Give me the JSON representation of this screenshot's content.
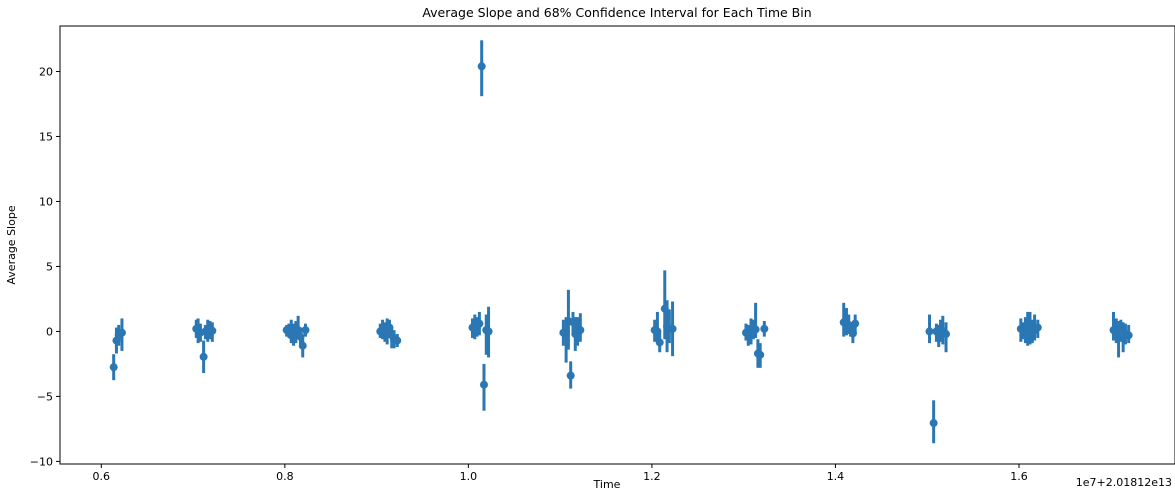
{
  "chart_data": {
    "type": "scatter",
    "title": "Average Slope and 68% Confidence Interval for Each Time Bin",
    "xlabel": "Time",
    "ylabel": "Average Slope",
    "offset_label": "1e7+2.01812e13",
    "xlim": [
      0.555,
      1.77
    ],
    "ylim": [
      -10.2,
      23.5
    ],
    "xticks": [
      0.6,
      0.8,
      1.0,
      1.2,
      1.4,
      1.6
    ],
    "xtick_labels": [
      "0.6",
      "0.8",
      "1.0",
      "1.2",
      "1.4",
      "1.6"
    ],
    "yticks": [
      -10,
      -5,
      0,
      5,
      10,
      15,
      20
    ],
    "ytick_labels": [
      "−10",
      "−5",
      "0",
      "5",
      "10",
      "15",
      "20"
    ],
    "grid": false,
    "color": "#2a77b4",
    "points": [
      {
        "x": 0.6135,
        "y": -2.75,
        "lo": -3.75,
        "hi": -1.75
      },
      {
        "x": 0.6165,
        "y": -0.7,
        "lo": -1.7,
        "hi": 0.3
      },
      {
        "x": 0.619,
        "y": -0.3,
        "lo": -1.1,
        "hi": 0.5
      },
      {
        "x": 0.6225,
        "y": -0.1,
        "lo": -1.5,
        "hi": 1.0
      },
      {
        "x": 0.7035,
        "y": 0.2,
        "lo": -0.5,
        "hi": 0.9
      },
      {
        "x": 0.7055,
        "y": 0.1,
        "lo": -0.9,
        "hi": 1.0
      },
      {
        "x": 0.708,
        "y": -0.1,
        "lo": -0.8,
        "hi": 0.6
      },
      {
        "x": 0.7115,
        "y": -1.95,
        "lo": -3.2,
        "hi": -0.7
      },
      {
        "x": 0.7135,
        "y": 0.0,
        "lo": -0.6,
        "hi": 0.5
      },
      {
        "x": 0.716,
        "y": -0.2,
        "lo": -0.8,
        "hi": 0.9
      },
      {
        "x": 0.7185,
        "y": 0.1,
        "lo": -0.6,
        "hi": 0.8
      },
      {
        "x": 0.721,
        "y": 0.05,
        "lo": -0.8,
        "hi": 0.7
      },
      {
        "x": 0.802,
        "y": 0.1,
        "lo": -0.4,
        "hi": 0.5
      },
      {
        "x": 0.8045,
        "y": 0.05,
        "lo": -0.5,
        "hi": 0.6
      },
      {
        "x": 0.807,
        "y": -0.3,
        "lo": -0.9,
        "hi": 0.9
      },
      {
        "x": 0.8095,
        "y": -0.2,
        "lo": -1.1,
        "hi": 0.6
      },
      {
        "x": 0.812,
        "y": 0.0,
        "lo": -0.9,
        "hi": 0.8
      },
      {
        "x": 0.8145,
        "y": 0.1,
        "lo": -0.6,
        "hi": 1.2
      },
      {
        "x": 0.817,
        "y": -0.4,
        "lo": -1.0,
        "hi": 0.3
      },
      {
        "x": 0.8195,
        "y": -1.1,
        "lo": -2.0,
        "hi": -0.4
      },
      {
        "x": 0.8225,
        "y": 0.1,
        "lo": -0.4,
        "hi": 0.6
      },
      {
        "x": 0.904,
        "y": 0.0,
        "lo": -0.5,
        "hi": 0.6
      },
      {
        "x": 0.9065,
        "y": 0.2,
        "lo": -0.6,
        "hi": 0.9
      },
      {
        "x": 0.909,
        "y": 0.1,
        "lo": -0.8,
        "hi": 0.7
      },
      {
        "x": 0.9115,
        "y": -0.1,
        "lo": -1.0,
        "hi": 1.0
      },
      {
        "x": 0.914,
        "y": 0.3,
        "lo": -0.5,
        "hi": 0.9
      },
      {
        "x": 0.9165,
        "y": -0.3,
        "lo": -1.3,
        "hi": 0.3
      },
      {
        "x": 0.919,
        "y": -0.6,
        "lo": -1.3,
        "hi": 0.1
      },
      {
        "x": 0.9225,
        "y": -0.7,
        "lo": -1.2,
        "hi": -0.2
      },
      {
        "x": 1.0045,
        "y": 0.3,
        "lo": -0.5,
        "hi": 1.0
      },
      {
        "x": 1.007,
        "y": 0.25,
        "lo": -0.6,
        "hi": 1.3
      },
      {
        "x": 1.0095,
        "y": 0.4,
        "lo": -0.4,
        "hi": 1.1
      },
      {
        "x": 1.012,
        "y": 0.6,
        "lo": -0.3,
        "hi": 1.5
      },
      {
        "x": 1.0145,
        "y": 20.4,
        "lo": 18.1,
        "hi": 22.4
      },
      {
        "x": 1.017,
        "y": -4.1,
        "lo": -6.1,
        "hi": -2.5
      },
      {
        "x": 1.0195,
        "y": 0.1,
        "lo": -1.8,
        "hi": 1.3
      },
      {
        "x": 1.022,
        "y": 0.0,
        "lo": -2.0,
        "hi": 1.9
      },
      {
        "x": 1.1035,
        "y": -0.1,
        "lo": -1.1,
        "hi": 0.9
      },
      {
        "x": 1.1065,
        "y": 0.0,
        "lo": -2.4,
        "hi": 1.1
      },
      {
        "x": 1.109,
        "y": 0.8,
        "lo": -1.4,
        "hi": 3.2
      },
      {
        "x": 1.1115,
        "y": -3.4,
        "lo": -4.4,
        "hi": -2.3
      },
      {
        "x": 1.114,
        "y": 0.7,
        "lo": -0.3,
        "hi": 1.5
      },
      {
        "x": 1.1165,
        "y": -0.2,
        "lo": -1.5,
        "hi": 1.1
      },
      {
        "x": 1.119,
        "y": 0.1,
        "lo": -1.1,
        "hi": 1.1
      },
      {
        "x": 1.122,
        "y": 0.1,
        "lo": -0.8,
        "hi": 1.4
      },
      {
        "x": 1.203,
        "y": 0.1,
        "lo": -0.8,
        "hi": 0.9
      },
      {
        "x": 1.206,
        "y": 0.0,
        "lo": -0.9,
        "hi": 1.5
      },
      {
        "x": 1.2085,
        "y": -0.85,
        "lo": -1.6,
        "hi": -0.1
      },
      {
        "x": 1.214,
        "y": 1.75,
        "lo": -0.6,
        "hi": 4.7
      },
      {
        "x": 1.2165,
        "y": 0.4,
        "lo": -1.6,
        "hi": 2.4
      },
      {
        "x": 1.219,
        "y": 0.2,
        "lo": -0.9,
        "hi": 1.7
      },
      {
        "x": 1.2225,
        "y": 0.2,
        "lo": -1.9,
        "hi": 2.3
      },
      {
        "x": 1.3025,
        "y": -0.1,
        "lo": -0.7,
        "hi": 0.6
      },
      {
        "x": 1.305,
        "y": -0.3,
        "lo": -1.1,
        "hi": 0.5
      },
      {
        "x": 1.308,
        "y": 0.0,
        "lo": -1.0,
        "hi": 1.0
      },
      {
        "x": 1.3105,
        "y": 0.2,
        "lo": -0.6,
        "hi": 0.9
      },
      {
        "x": 1.313,
        "y": 0.15,
        "lo": -0.5,
        "hi": 2.2
      },
      {
        "x": 1.3155,
        "y": -1.7,
        "lo": -2.8,
        "hi": -0.6
      },
      {
        "x": 1.318,
        "y": -1.8,
        "lo": -2.8,
        "hi": -0.9
      },
      {
        "x": 1.3225,
        "y": 0.2,
        "lo": -0.4,
        "hi": 0.8
      },
      {
        "x": 1.409,
        "y": 0.7,
        "lo": -0.4,
        "hi": 2.2
      },
      {
        "x": 1.412,
        "y": 0.4,
        "lo": -0.3,
        "hi": 1.8
      },
      {
        "x": 1.4145,
        "y": 0.5,
        "lo": -0.2,
        "hi": 1.3
      },
      {
        "x": 1.4165,
        "y": 0.1,
        "lo": -0.4,
        "hi": 0.7
      },
      {
        "x": 1.419,
        "y": -0.15,
        "lo": -0.9,
        "hi": 0.7
      },
      {
        "x": 1.4215,
        "y": 0.6,
        "lo": -0.3,
        "hi": 1.3
      },
      {
        "x": 1.5025,
        "y": 0.0,
        "lo": -0.9,
        "hi": 1.3
      },
      {
        "x": 1.507,
        "y": -7.05,
        "lo": -8.6,
        "hi": -5.3
      },
      {
        "x": 1.51,
        "y": 0.0,
        "lo": -0.8,
        "hi": 0.6
      },
      {
        "x": 1.5125,
        "y": -0.2,
        "lo": -1.2,
        "hi": 0.5
      },
      {
        "x": 1.5145,
        "y": 0.1,
        "lo": -0.8,
        "hi": 0.9
      },
      {
        "x": 1.517,
        "y": 0.0,
        "lo": -1.0,
        "hi": 1.2
      },
      {
        "x": 1.5205,
        "y": -0.2,
        "lo": -1.6,
        "hi": 0.7
      },
      {
        "x": 1.602,
        "y": 0.2,
        "lo": -0.8,
        "hi": 1.0
      },
      {
        "x": 1.6045,
        "y": 0.05,
        "lo": -0.6,
        "hi": 0.7
      },
      {
        "x": 1.607,
        "y": 0.1,
        "lo": -0.9,
        "hi": 1.1
      },
      {
        "x": 1.6095,
        "y": -0.1,
        "lo": -1.1,
        "hi": 1.5
      },
      {
        "x": 1.612,
        "y": 0.0,
        "lo": -1.0,
        "hi": 1.5
      },
      {
        "x": 1.6145,
        "y": 0.15,
        "lo": -0.9,
        "hi": 0.9
      },
      {
        "x": 1.617,
        "y": 0.1,
        "lo": -0.7,
        "hi": 1.3
      },
      {
        "x": 1.6205,
        "y": 0.3,
        "lo": -0.5,
        "hi": 0.9
      },
      {
        "x": 1.703,
        "y": 0.1,
        "lo": -0.7,
        "hi": 1.5
      },
      {
        "x": 1.706,
        "y": 0.0,
        "lo": -0.9,
        "hi": 1.0
      },
      {
        "x": 1.7085,
        "y": -0.2,
        "lo": -2.0,
        "hi": 0.8
      },
      {
        "x": 1.711,
        "y": 0.1,
        "lo": -0.8,
        "hi": 0.9
      },
      {
        "x": 1.7135,
        "y": -0.1,
        "lo": -1.6,
        "hi": 0.7
      },
      {
        "x": 1.716,
        "y": -0.2,
        "lo": -1.0,
        "hi": 0.6
      },
      {
        "x": 1.7195,
        "y": -0.3,
        "lo": -0.9,
        "hi": 0.5
      }
    ]
  }
}
